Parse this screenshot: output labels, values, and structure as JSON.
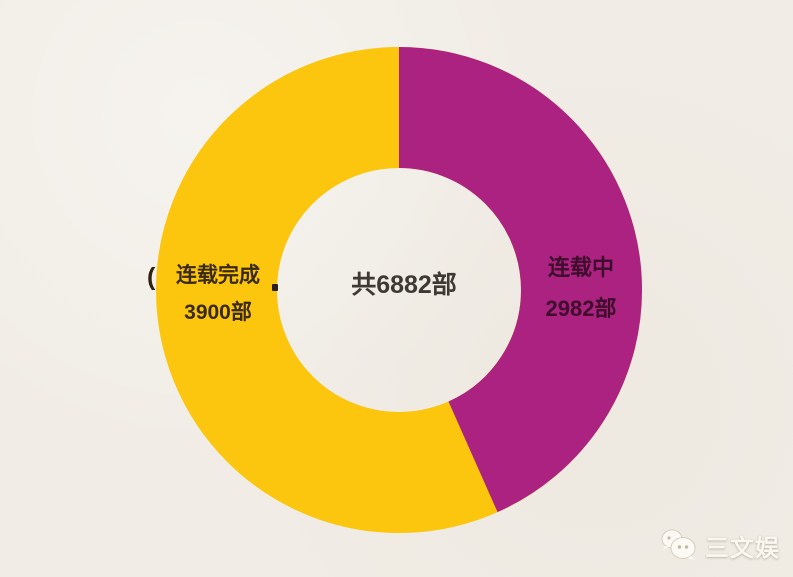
{
  "chart_data": {
    "type": "pie",
    "subtype": "donut",
    "title": "",
    "center_label": "共6882部",
    "total_value": 6882,
    "unit": "部",
    "start_angle_deg": 0,
    "direction": "clockwise",
    "legend_position": "labels-on-slices",
    "grid": false,
    "slices": [
      {
        "name": "连载中",
        "value": 2982,
        "value_label": "2982部",
        "color": "#AB2280",
        "label_side": "right"
      },
      {
        "name": "连载完成",
        "value": 3900,
        "value_label": "3900部",
        "color": "#FBC60D",
        "label_side": "left"
      }
    ]
  },
  "background_color": "#F1EDE6",
  "artifacts": {
    "clipped_paren": "("
  },
  "watermark": {
    "brand": "三文娱",
    "logo": "chat-bubbles-icon"
  }
}
